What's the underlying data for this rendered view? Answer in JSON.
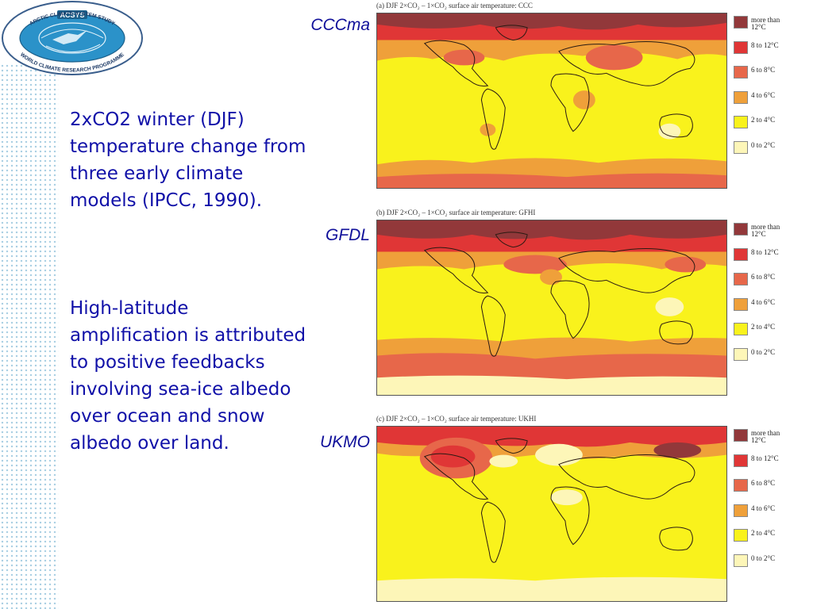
{
  "logo": {
    "top_text": "ARCTIC CLIMATE SYSTEM STUDY",
    "center_text": "ACSYS",
    "bottom_text": "WORLD CLIMATE RESEARCH PROGRAMME"
  },
  "text": {
    "para1": "2xCO2 winter (DJF) temperature change from three early climate models (IPCC, 1990).",
    "para2": "High-latitude amplification is attributed to positive feedbacks involving sea-ice albedo over ocean and snow albedo over land."
  },
  "colors": {
    "text": "#1010a8",
    "bin_0_2": "#fdf6b8",
    "bin_2_4": "#f9f21c",
    "bin_4_6": "#efa03a",
    "bin_6_8": "#e7674a",
    "bin_8_12": "#e03636",
    "bin_12p": "#92383a"
  },
  "legend": [
    {
      "label": "more than 12°C",
      "color": "#92383a"
    },
    {
      "label": "8 to 12°C",
      "color": "#e03636"
    },
    {
      "label": "6 to 8°C",
      "color": "#e7674a"
    },
    {
      "label": "4 to 6°C",
      "color": "#efa03a"
    },
    {
      "label": "2 to 4°C",
      "color": "#f9f21c"
    },
    {
      "label": "0 to 2°C",
      "color": "#fdf6b8"
    }
  ],
  "panels": [
    {
      "model": "CCCma",
      "title": "(a) DJF 2×CO₂ – 1×CO₂ surface air temperature: CCC"
    },
    {
      "model": "GFDL",
      "title": "(b) DJF 2×CO₂ – 1×CO₂ surface air temperature: GFHI"
    },
    {
      "model": "UKMO",
      "title": "(c) DJF 2×CO₂ – 1×CO₂ surface air temperature: UKHI"
    }
  ]
}
